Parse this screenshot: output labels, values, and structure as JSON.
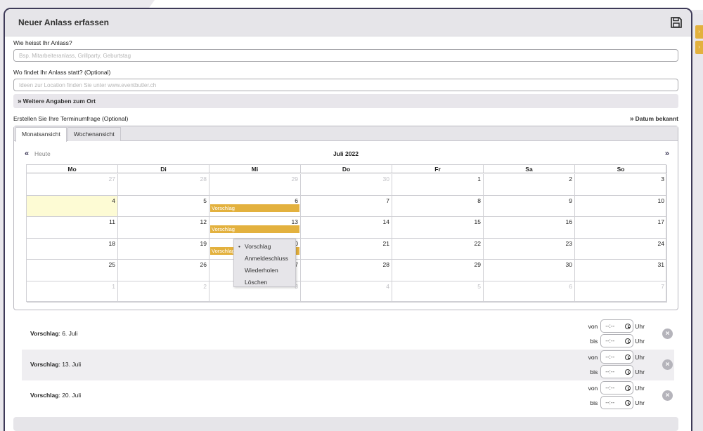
{
  "panel": {
    "title": "Neuer Anlass erfassen",
    "save_icon": "floppy-disk-icon"
  },
  "form": {
    "name_label": "Wie heisst Ihr Anlass?",
    "name_placeholder": "Bsp. Mitarbeiteranlass, Grillparty, Geburtstag",
    "location_label": "Wo findet Ihr Anlass statt? (Optional)",
    "location_placeholder": "Ideen zur Location finden Sie unter www.eventbutler.ch",
    "more_location": "Weitere Angaben zum Ort",
    "poll_label": "Erstellen Sie Ihre Terminumfrage (Optional)",
    "date_known": "Datum bekannt"
  },
  "calendar": {
    "tabs": [
      "Monatsansicht",
      "Wochenansicht"
    ],
    "active_tab": 0,
    "today_label": "Heute",
    "month_title": "Juli 2022",
    "day_names": [
      "Mo",
      "Di",
      "Mi",
      "Do",
      "Fr",
      "Sa",
      "So"
    ],
    "weeks": [
      [
        {
          "n": "27",
          "m": true
        },
        {
          "n": "28",
          "m": true
        },
        {
          "n": "29",
          "m": true
        },
        {
          "n": "30",
          "m": true
        },
        {
          "n": "1"
        },
        {
          "n": "2"
        },
        {
          "n": "3"
        }
      ],
      [
        {
          "n": "4",
          "today": true
        },
        {
          "n": "5"
        },
        {
          "n": "6",
          "ev": "Vorschlag"
        },
        {
          "n": "7"
        },
        {
          "n": "8"
        },
        {
          "n": "9"
        },
        {
          "n": "10"
        }
      ],
      [
        {
          "n": "11"
        },
        {
          "n": "12"
        },
        {
          "n": "13",
          "ev": "Vorschlag"
        },
        {
          "n": "14"
        },
        {
          "n": "15"
        },
        {
          "n": "16"
        },
        {
          "n": "17"
        }
      ],
      [
        {
          "n": "18"
        },
        {
          "n": "19"
        },
        {
          "n": "20",
          "ev": "Vorschlag"
        },
        {
          "n": "21"
        },
        {
          "n": "22"
        },
        {
          "n": "23"
        },
        {
          "n": "24"
        }
      ],
      [
        {
          "n": "25"
        },
        {
          "n": "26"
        },
        {
          "n": "27"
        },
        {
          "n": "28"
        },
        {
          "n": "29"
        },
        {
          "n": "30"
        },
        {
          "n": "31"
        }
      ],
      [
        {
          "n": "1",
          "m": true
        },
        {
          "n": "2",
          "m": true
        },
        {
          "n": "3",
          "m": true
        },
        {
          "n": "4",
          "m": true
        },
        {
          "n": "5",
          "m": true
        },
        {
          "n": "6",
          "m": true
        },
        {
          "n": "7",
          "m": true
        }
      ]
    ],
    "context_menu": [
      "Vorschlag",
      "Anmeldeschluss",
      "Wiederholen",
      "Löschen"
    ],
    "context_selected": 0
  },
  "suggestions": [
    {
      "label": "Vorschlag",
      "date": ": 6. Juli"
    },
    {
      "label": "Vorschlag",
      "date": ": 13. Juli"
    },
    {
      "label": "Vorschlag",
      "date": ": 20. Juli"
    }
  ],
  "time": {
    "from": "von",
    "to": "bis",
    "placeholder": "--:--",
    "unit": "Uhr"
  },
  "colors": {
    "accent": "#e3b13e",
    "frame": "#3e3a58",
    "today": "#fdfbd4"
  }
}
